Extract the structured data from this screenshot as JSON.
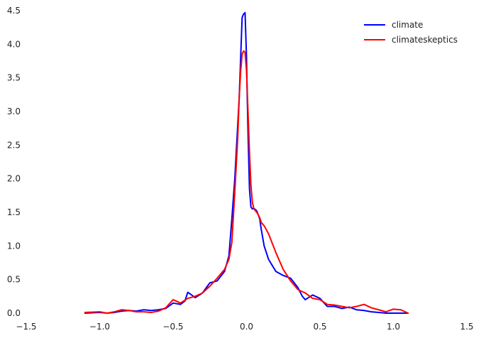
{
  "chart_data": {
    "type": "line",
    "title": "",
    "xlabel": "",
    "ylabel": "",
    "xlim": [
      -1.5,
      1.5
    ],
    "ylim": [
      0.0,
      4.5
    ],
    "xticks": [
      -1.5,
      -1.0,
      -0.5,
      0.0,
      0.5,
      1.0,
      1.5
    ],
    "xtick_labels": [
      "−1.5",
      "−1.0",
      "−0.5",
      "0.0",
      "0.5",
      "1.0",
      "1.5"
    ],
    "yticks": [
      0.0,
      0.5,
      1.0,
      1.5,
      2.0,
      2.5,
      3.0,
      3.5,
      4.0,
      4.5
    ],
    "ytick_labels": [
      "0.0",
      "0.5",
      "1.0",
      "1.5",
      "2.0",
      "2.5",
      "3.0",
      "3.5",
      "4.0",
      "4.5"
    ],
    "grid": false,
    "legend_position": "top-right",
    "series": [
      {
        "name": "climate",
        "color": "#0000ff",
        "x": [
          -1.1,
          -1.0,
          -0.95,
          -0.9,
          -0.85,
          -0.8,
          -0.75,
          -0.7,
          -0.65,
          -0.6,
          -0.55,
          -0.5,
          -0.45,
          -0.42,
          -0.4,
          -0.38,
          -0.35,
          -0.3,
          -0.25,
          -0.2,
          -0.15,
          -0.12,
          -0.1,
          -0.08,
          -0.06,
          -0.05,
          -0.04,
          -0.03,
          -0.02,
          -0.01,
          0.0,
          0.005,
          0.01,
          0.02,
          0.03,
          0.04,
          0.05,
          0.07,
          0.09,
          0.1,
          0.12,
          0.15,
          0.2,
          0.25,
          0.3,
          0.35,
          0.38,
          0.4,
          0.45,
          0.5,
          0.55,
          0.6,
          0.65,
          0.7,
          0.75,
          0.8,
          0.85,
          0.9,
          0.95,
          1.0,
          1.05,
          1.1
        ],
        "y": [
          0.0,
          0.01,
          0.0,
          0.01,
          0.03,
          0.04,
          0.03,
          0.05,
          0.04,
          0.05,
          0.07,
          0.15,
          0.13,
          0.18,
          0.31,
          0.28,
          0.23,
          0.3,
          0.45,
          0.48,
          0.62,
          0.85,
          1.4,
          2.0,
          2.8,
          3.2,
          3.8,
          4.4,
          4.45,
          4.47,
          3.8,
          3.2,
          2.7,
          1.85,
          1.58,
          1.55,
          1.56,
          1.52,
          1.4,
          1.25,
          1.0,
          0.8,
          0.62,
          0.56,
          0.52,
          0.38,
          0.25,
          0.2,
          0.27,
          0.22,
          0.1,
          0.1,
          0.07,
          0.09,
          0.05,
          0.04,
          0.02,
          0.01,
          0.0,
          0.0,
          0.0,
          0.0
        ]
      },
      {
        "name": "climateskeptics",
        "color": "#ff0000",
        "x": [
          -1.1,
          -1.0,
          -0.95,
          -0.9,
          -0.85,
          -0.8,
          -0.75,
          -0.7,
          -0.65,
          -0.6,
          -0.55,
          -0.5,
          -0.45,
          -0.4,
          -0.35,
          -0.3,
          -0.25,
          -0.2,
          -0.15,
          -0.12,
          -0.1,
          -0.08,
          -0.06,
          -0.05,
          -0.04,
          -0.03,
          -0.02,
          -0.01,
          0.0,
          0.005,
          0.01,
          0.02,
          0.03,
          0.04,
          0.05,
          0.07,
          0.09,
          0.1,
          0.12,
          0.15,
          0.2,
          0.25,
          0.3,
          0.35,
          0.4,
          0.45,
          0.5,
          0.55,
          0.6,
          0.65,
          0.7,
          0.75,
          0.8,
          0.85,
          0.9,
          0.95,
          1.0,
          1.05,
          1.1
        ],
        "y": [
          0.01,
          0.02,
          0.0,
          0.02,
          0.05,
          0.04,
          0.02,
          0.02,
          0.01,
          0.03,
          0.08,
          0.2,
          0.15,
          0.22,
          0.25,
          0.3,
          0.4,
          0.52,
          0.65,
          0.8,
          1.05,
          1.8,
          2.6,
          3.2,
          3.6,
          3.85,
          3.9,
          3.88,
          3.6,
          3.3,
          3.0,
          2.4,
          1.9,
          1.65,
          1.55,
          1.5,
          1.42,
          1.35,
          1.3,
          1.18,
          0.9,
          0.65,
          0.48,
          0.35,
          0.3,
          0.22,
          0.2,
          0.13,
          0.12,
          0.1,
          0.08,
          0.1,
          0.13,
          0.08,
          0.05,
          0.02,
          0.06,
          0.05,
          0.0
        ]
      }
    ]
  }
}
